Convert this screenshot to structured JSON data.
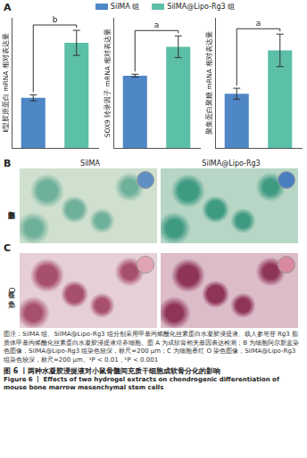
{
  "panel_labels": [
    "A",
    "B",
    "C"
  ],
  "legend": [
    {
      "name": "SilMA 组",
      "color": "#4e86c6"
    },
    {
      "name": "SilMA@Lipo-Rg3 组",
      "color": "#5cbfa8"
    }
  ],
  "chart_data": [
    {
      "type": "bar",
      "y_label": "Ⅱ型胶原蛋白 mRNA 相对表达量",
      "categories": [
        null,
        null
      ],
      "values": [
        1.0,
        2.1
      ],
      "errors": [
        0.06,
        0.25
      ],
      "colors": [
        "#4e86c6",
        "#5cbfa8"
      ],
      "ylim": [
        0,
        2.6
      ],
      "yticks": [],
      "tick_labels": false,
      "grid": false,
      "annotation": "b"
    },
    {
      "type": "bar",
      "y_label": "SOX9 转录因子 mRNA 相对表达量",
      "categories": [
        null,
        null
      ],
      "values": [
        1.0,
        1.4
      ],
      "errors": [
        0.02,
        0.15
      ],
      "colors": [
        "#4e86c6",
        "#5cbfa8"
      ],
      "ylim": [
        0,
        1.8
      ],
      "yticks": [],
      "tick_labels": false,
      "grid": false,
      "annotation": "a"
    },
    {
      "type": "bar",
      "y_label": "聚集蛋白聚糖 mRNA 相对表达量",
      "categories": [
        null,
        null
      ],
      "values": [
        1.0,
        1.8
      ],
      "errors": [
        0.1,
        0.3
      ],
      "colors": [
        "#4e86c6",
        "#5cbfa8"
      ],
      "ylim": [
        0,
        2.4
      ],
      "yticks": [],
      "tick_labels": false,
      "grid": false,
      "annotation": "a"
    }
  ],
  "images": {
    "columns": [
      "SilMA",
      "SilMA@Lipo-Rg3"
    ],
    "rows": [
      "阿尔新蓝染色",
      "番红 O 染色"
    ]
  },
  "caption": "图注：SilMA 组、SilMA@Lipo-Rg3 组分别采用甲基丙烯酰化丝素蛋白水凝胶浸提液、载人参皂苷 Rg3 脂质体甲基丙烯酰化丝素蛋白水凝胶浸提液培养细胞。图 A 为成软骨相关基因表达检测；B 为细胞阿尔新蓝染色图像，SilMA@Lipo-Rg3 组染色较深，标尺=200 μm；C 为细胞番红 O 染色图像，SilMA@Lipo-Rg3 组染色较深，标尺=200 μm。ᵃP < 0.01，ᵇP < 0.001",
  "figure_title": "图 6 丨两种水凝胶浸提液对小鼠骨髓间充质干细胞成软骨分化的影响",
  "figure_title_en": "Figure 6 丨 Effects of two hydrogel extracts on chondrogenic differentiation of mouse bone marrow mesenchymal stem cells"
}
